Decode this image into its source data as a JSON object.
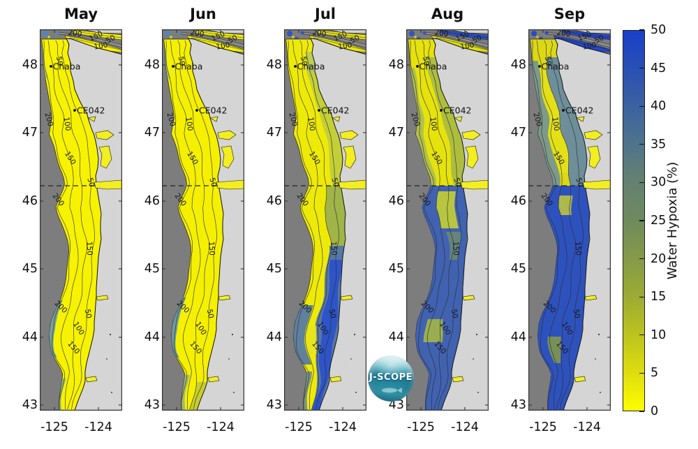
{
  "figure": {
    "panels": [
      {
        "title": "May"
      },
      {
        "title": "Jun"
      },
      {
        "title": "Jul"
      },
      {
        "title": "Aug"
      },
      {
        "title": "Sep"
      }
    ],
    "y_axis": {
      "tick_labels": [
        "48",
        "47",
        "46",
        "45",
        "44",
        "43"
      ]
    },
    "x_axis": {
      "tick_labels": [
        "-125",
        "-124"
      ]
    },
    "stations": [
      {
        "name": "Chaba"
      },
      {
        "name": "CE042"
      }
    ],
    "contour_labels": [
      "50",
      "100",
      "150",
      "200"
    ],
    "colorbar": {
      "label": "Water Hypoxia (%)",
      "tick_labels": [
        "50",
        "45",
        "40",
        "35",
        "30",
        "25",
        "20",
        "15",
        "10",
        "5",
        "0"
      ],
      "min": 0,
      "max": 50,
      "color_min": "#fdfd00",
      "color_mid": "#6f8a5e",
      "color_max": "#1a3fca"
    },
    "logo": {
      "label": "J-SCOPE"
    },
    "map_colors": {
      "deep_ocean": "#7d7d7d",
      "land": "#d5d5d5",
      "strait_ridge": "#909090",
      "coastline": "#111111",
      "contour_line": "#2e2e2e",
      "inlet_water": "#f2ee20"
    }
  },
  "chart_data": {
    "type": "heatmap",
    "title": "",
    "panels": [
      "May",
      "Jun",
      "Jul",
      "Aug",
      "Sep"
    ],
    "colorbar": {
      "label": "Water Hypoxia (%)",
      "range": [
        0,
        50
      ],
      "tick_step": 5
    },
    "x_ticks": [
      -125,
      -124
    ],
    "y_ticks": [
      48,
      47,
      46,
      45,
      44,
      43
    ],
    "stations": [
      "Chaba",
      "CE042"
    ],
    "depth_contour_labels_m": [
      50,
      100,
      150,
      200
    ],
    "dashed_latitude": 46.25,
    "pattern_summary_colors": {
      "May": "mostly 0% (yellow) shelf",
      "Jun": "mostly 0% (yellow), slight increase south",
      "Jul": "hypoxia rising nearshore and south of 45.5N (blue bands)",
      "Aug": "Oregon shelf largely 40-50% (blue), WA midshelf still low",
      "Sep": "most of shelf 40-50% (blue), yellow core remains on WA midshelf"
    }
  }
}
